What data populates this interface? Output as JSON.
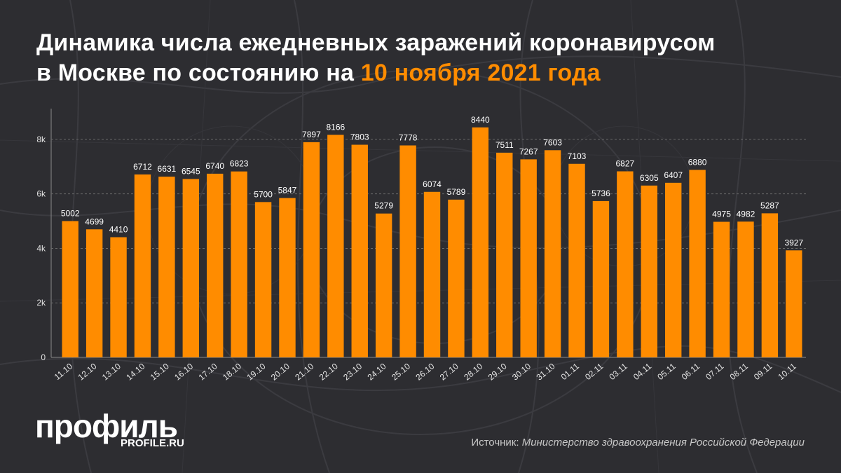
{
  "title": {
    "line1": "Динамика числа ежедневных заражений коронавирусом",
    "line2_prefix": "в Москве по состоянию на ",
    "line2_accent": "10 ноября 2021 года"
  },
  "colors": {
    "background": "#2d2d31",
    "bar": "#ff8c00",
    "accent": "#ff8c00",
    "text": "#ffffff"
  },
  "chart_data": {
    "type": "bar",
    "title": "",
    "xlabel": "",
    "ylabel": "",
    "ylim": [
      0,
      9000
    ],
    "yticks": [
      0,
      2000,
      4000,
      6000,
      8000
    ],
    "ytick_labels": [
      "0",
      "2k",
      "4k",
      "6k",
      "8k"
    ],
    "grid": true,
    "categories": [
      "11.10",
      "12.10",
      "13.10",
      "14.10",
      "15.10",
      "16.10",
      "17.10",
      "18.10",
      "19.10",
      "20.10",
      "21.10",
      "22.10",
      "23.10",
      "24.10",
      "25.10",
      "26.10",
      "27.10",
      "28.10",
      "29.10",
      "30.10",
      "31.10",
      "01.11",
      "02.11",
      "03.11",
      "04.11",
      "05.11",
      "06.11",
      "07.11",
      "08.11",
      "09.11",
      "10.11"
    ],
    "values": [
      5002,
      4699,
      4410,
      6712,
      6631,
      6545,
      6740,
      6823,
      5700,
      5847,
      7897,
      8166,
      7803,
      5279,
      7778,
      6074,
      5789,
      8440,
      7511,
      7267,
      7603,
      7103,
      5736,
      6827,
      6305,
      6407,
      6880,
      4975,
      4982,
      5287,
      3927
    ]
  },
  "brand": {
    "logo": "профиль",
    "site": "PROFILE.RU"
  },
  "source": {
    "label": "Источник: ",
    "value": "Министерство здравоохранения Российской Федерации"
  }
}
